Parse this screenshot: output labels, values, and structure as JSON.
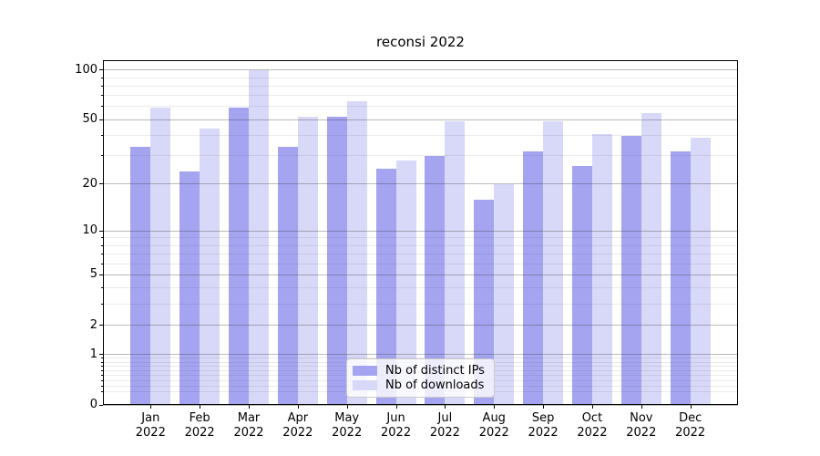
{
  "chart_data": {
    "type": "bar",
    "title": "reconsi 2022",
    "categories": [
      "Jan 2022",
      "Feb 2022",
      "Mar 2022",
      "Apr 2022",
      "May 2022",
      "Jun 2022",
      "Jul 2022",
      "Aug 2022",
      "Sep 2022",
      "Oct 2022",
      "Nov 2022",
      "Dec 2022"
    ],
    "series": [
      {
        "name": "Nb of distinct IPs",
        "color": "#a4a4f1",
        "values": [
          34,
          24,
          59,
          34,
          52,
          25,
          30,
          16,
          32,
          26,
          40,
          32
        ]
      },
      {
        "name": "Nb of downloads",
        "color": "#d8d8f8",
        "values": [
          59,
          44,
          100,
          52,
          65,
          28,
          49,
          20,
          49,
          41,
          55,
          39
        ]
      }
    ],
    "yscale": "log1p",
    "ylim": [
      0,
      114
    ],
    "y_major_ticks": [
      0,
      1,
      2,
      5,
      10,
      20,
      50,
      100
    ],
    "y_minor_ticks": [
      0.2,
      0.3,
      0.4,
      0.5,
      0.6,
      0.7,
      0.8,
      0.9,
      3,
      4,
      6,
      7,
      8,
      9,
      30,
      40,
      60,
      70,
      80,
      90
    ],
    "grid": true,
    "legend_position": "lower center",
    "colors": {
      "background": "#ffffff",
      "axis": "#000000",
      "grid_major": "rgba(60,60,60,0.35)",
      "grid_minor": "rgba(60,60,60,0.10)"
    }
  }
}
